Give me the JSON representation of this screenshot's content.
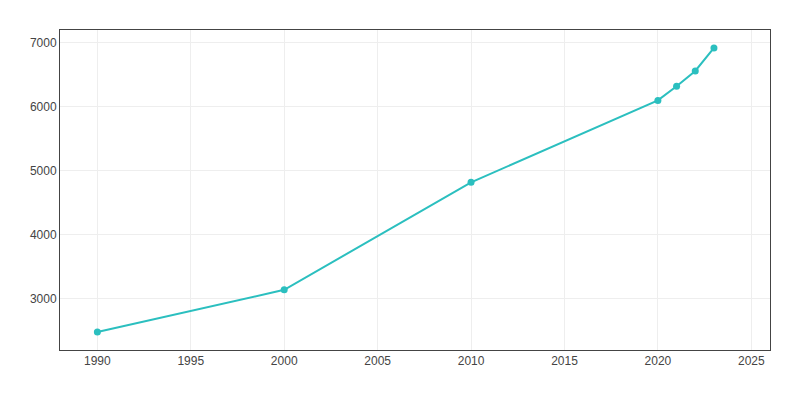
{
  "chart_data": {
    "type": "line",
    "x": [
      1990,
      2000,
      2010,
      2020,
      2021,
      2022,
      2023
    ],
    "values": [
      2480,
      3140,
      4820,
      6100,
      6320,
      6560,
      6920
    ],
    "color": "#2bbfbf",
    "marker": "circle",
    "xlim": [
      1988,
      2026
    ],
    "ylim": [
      2200,
      7200
    ],
    "xticks": [
      1990,
      1995,
      2000,
      2005,
      2010,
      2015,
      2020,
      2025
    ],
    "yticks": [
      3000,
      4000,
      5000,
      6000,
      7000
    ],
    "grid": true
  }
}
